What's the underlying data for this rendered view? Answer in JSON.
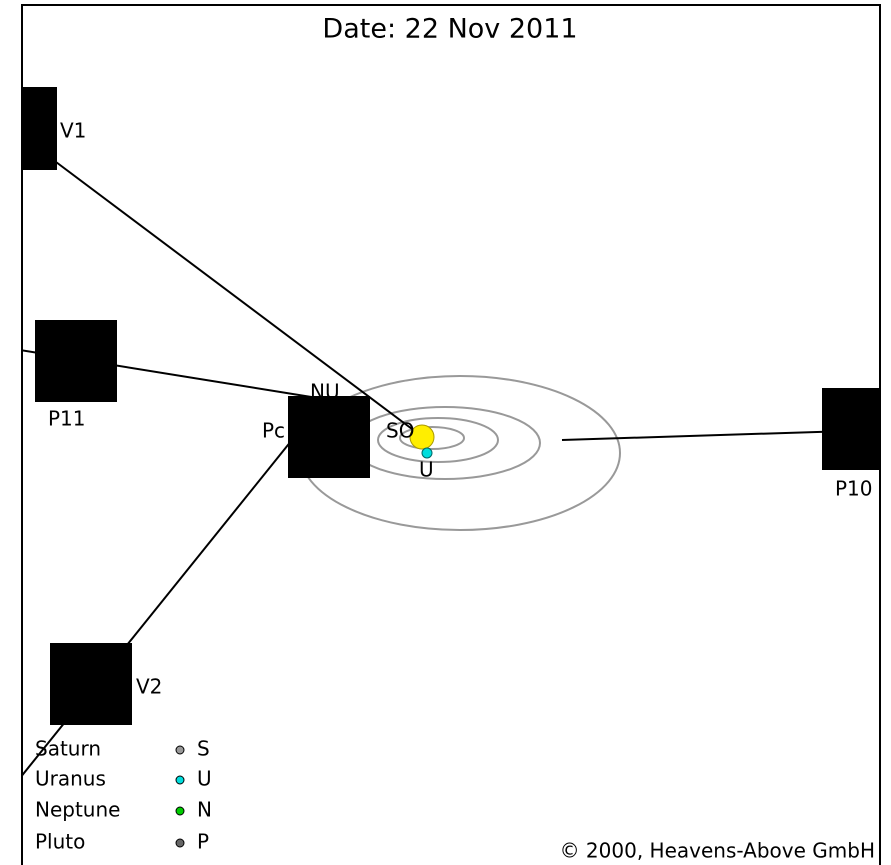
{
  "header": {
    "title": "Date: 22 Nov 2011"
  },
  "probes": [
    {
      "label": "V1"
    },
    {
      "label": "P11"
    },
    {
      "label": "P10"
    },
    {
      "label": "V2"
    }
  ],
  "planet_labels": [
    "NU",
    "Pc",
    "SO",
    "U"
  ],
  "legend": [
    {
      "name": "Saturn",
      "symbol": "S"
    },
    {
      "name": "Uranus",
      "symbol": "U"
    },
    {
      "name": "Neptune",
      "symbol": "N"
    },
    {
      "name": "Pluto",
      "symbol": "P"
    }
  ],
  "footer": {
    "copyright": "© 2000, Heavens-Above GmbH"
  }
}
